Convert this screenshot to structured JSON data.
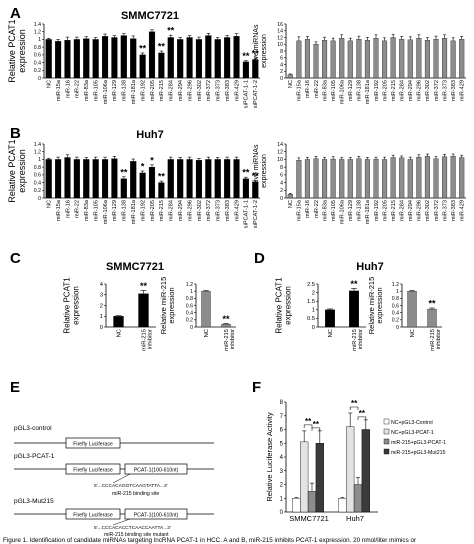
{
  "figure": {
    "panels": {
      "A": {
        "letter": "A",
        "title": "SMMC7721"
      },
      "B": {
        "letter": "B",
        "title": "Huh7"
      },
      "C": {
        "letter": "C",
        "title": "SMMC7721"
      },
      "D": {
        "letter": "D",
        "title": "Huh7"
      },
      "E": {
        "letter": "E"
      },
      "F": {
        "letter": "F"
      }
    },
    "caption": "Figure 1. Identification of candidate miRNAs targeting lncRNA PCAT-1 in HCC. A and B, miR-215 inhibits PCAT-1 expression. 20 nmol/liter mimics or"
  },
  "chart_data": [
    {
      "id": "A-left",
      "type": "bar",
      "panel": "A",
      "ylabel": "Relative PCAT1 expression",
      "ylim": [
        0,
        1.4
      ],
      "yticks": [
        "0",
        "0.2",
        "0.4",
        "0.6",
        "0.8",
        "1",
        "1.2",
        "1.4"
      ],
      "categories": [
        "NC",
        "miR-15a",
        "miR-16",
        "miR-22",
        "miR-83a",
        "miR-105",
        "miR-106a",
        "miR-129",
        "miR-138",
        "miR-181a",
        "miR-192",
        "miR-205",
        "miR-215",
        "miR-284",
        "miR-294",
        "miR-296",
        "miR-302",
        "miR-372",
        "miR-373",
        "miR-383",
        "miR-429",
        "siPCAT-1-1",
        "siPCAT-1-2"
      ],
      "values": [
        1.0,
        0.95,
        0.98,
        1.0,
        1.02,
        1.0,
        1.08,
        1.05,
        1.1,
        1.02,
        0.6,
        1.2,
        0.65,
        1.05,
        1.0,
        1.05,
        1.0,
        1.1,
        1.0,
        1.05,
        1.08,
        0.42,
        0.48
      ],
      "errors": [
        0.03,
        0.05,
        0.08,
        0.06,
        0.05,
        0.05,
        0.06,
        0.05,
        0.05,
        0.07,
        0.05,
        0.05,
        0.05,
        0.06,
        0.05,
        0.05,
        0.06,
        0.06,
        0.05,
        0.05,
        0.07,
        0.03,
        0.04
      ],
      "annotations": [
        {
          "index": 10,
          "text": "**"
        },
        {
          "index": 12,
          "text": "**"
        },
        {
          "index": 13,
          "text": "**"
        },
        {
          "index": 21,
          "text": "**"
        },
        {
          "index": 22,
          "text": "**"
        }
      ]
    },
    {
      "id": "A-right",
      "type": "bar",
      "panel": "A",
      "ylabel": "Relative miRNAs expression",
      "ylim": [
        0,
        16
      ],
      "yticks": [
        "0",
        "2",
        "4",
        "6",
        "8",
        "10",
        "12",
        "14",
        "16"
      ],
      "categories": [
        "NC",
        "miR-15a",
        "miR-16",
        "miR-22",
        "miR-83a",
        "miR-105",
        "miR-106a",
        "miR-129",
        "miR-138",
        "miR-181a",
        "miR-192",
        "miR-205",
        "miR-215",
        "miR-284",
        "miR-294",
        "miR-296",
        "miR-302",
        "miR-372",
        "miR-373",
        "miR-383",
        "miR-429"
      ],
      "values": [
        1.0,
        11.0,
        11.5,
        10.0,
        11.2,
        11.0,
        11.8,
        11.0,
        11.5,
        11.2,
        11.8,
        11.0,
        12.0,
        11.5,
        11.3,
        11.8,
        11.2,
        11.5,
        11.8,
        11.0,
        11.5
      ],
      "errors": [
        0.2,
        1.2,
        0.8,
        0.7,
        0.9,
        0.8,
        1.0,
        0.8,
        0.9,
        0.8,
        1.0,
        0.9,
        0.9,
        0.8,
        0.9,
        1.0,
        0.8,
        0.9,
        1.0,
        0.9,
        0.8
      ]
    },
    {
      "id": "B-left",
      "type": "bar",
      "panel": "B",
      "ylabel": "Relative PCAT1 expression",
      "ylim": [
        0,
        1.4
      ],
      "yticks": [
        "0",
        "0.2",
        "0.4",
        "0.6",
        "0.8",
        "1",
        "1.2",
        "1.4"
      ],
      "categories": [
        "NC",
        "miR-15a",
        "miR-16",
        "miR-22",
        "miR-83a",
        "miR-105",
        "miR-106a",
        "miR-129",
        "miR-138",
        "miR-181a",
        "miR-192",
        "miR-205",
        "miR-215",
        "miR-284",
        "miR-294",
        "miR-296",
        "miR-302",
        "miR-372",
        "miR-373",
        "miR-383",
        "miR-429",
        "siPCAT-1-1",
        "siPCAT-1-2"
      ],
      "values": [
        1.0,
        1.0,
        1.05,
        1.0,
        1.0,
        1.0,
        1.0,
        1.02,
        0.5,
        0.95,
        0.65,
        0.8,
        0.4,
        1.0,
        1.0,
        1.0,
        0.98,
        1.0,
        1.0,
        1.0,
        1.0,
        0.5,
        0.42
      ],
      "errors": [
        0.03,
        0.06,
        0.07,
        0.06,
        0.05,
        0.06,
        0.06,
        0.06,
        0.05,
        0.06,
        0.05,
        0.06,
        0.04,
        0.06,
        0.05,
        0.06,
        0.05,
        0.06,
        0.05,
        0.06,
        0.06,
        0.04,
        0.04
      ],
      "annotations": [
        {
          "index": 8,
          "text": "**"
        },
        {
          "index": 10,
          "text": "*"
        },
        {
          "index": 11,
          "text": "*"
        },
        {
          "index": 12,
          "text": "**"
        },
        {
          "index": 21,
          "text": "**"
        },
        {
          "index": 22,
          "text": "**"
        }
      ]
    },
    {
      "id": "B-right",
      "type": "bar",
      "panel": "B",
      "ylabel": "Relative miRNAs expression",
      "ylim": [
        0,
        14
      ],
      "yticks": [
        "0",
        "2",
        "4",
        "6",
        "8",
        "10",
        "12",
        "14"
      ],
      "categories": [
        "NC",
        "miR-15a",
        "miR-16",
        "miR-22",
        "miR-83a",
        "miR-105",
        "miR-106a",
        "miR-129",
        "miR-138",
        "miR-181a",
        "miR-192",
        "miR-205",
        "miR-215",
        "miR-284",
        "miR-294",
        "miR-296",
        "miR-302",
        "miR-372",
        "miR-373",
        "miR-383",
        "miR-429"
      ],
      "values": [
        1.0,
        9.8,
        10.0,
        10.2,
        10.0,
        10.1,
        10.0,
        10.0,
        10.2,
        10.0,
        10.1,
        10.0,
        10.5,
        10.4,
        10.0,
        10.6,
        10.8,
        10.2,
        10.7,
        10.8,
        10.5
      ],
      "errors": [
        0.2,
        0.6,
        0.5,
        0.6,
        0.5,
        0.6,
        0.5,
        0.5,
        0.6,
        0.5,
        0.5,
        0.6,
        0.6,
        0.5,
        0.6,
        0.6,
        0.6,
        0.5,
        0.6,
        0.6,
        0.6
      ]
    },
    {
      "id": "C-left",
      "type": "bar",
      "panel": "C",
      "ylabel": "Relative PCAT1 expression",
      "ylim": [
        0,
        4
      ],
      "yticks": [
        "0",
        "1",
        "2",
        "3",
        "4"
      ],
      "categories": [
        "NC",
        "miR-215 inhibitor"
      ],
      "values": [
        1.0,
        3.1
      ],
      "errors": [
        0.05,
        0.3
      ],
      "annotations": [
        {
          "index": 1,
          "text": "**"
        }
      ]
    },
    {
      "id": "C-right",
      "type": "bar",
      "panel": "C",
      "ylabel": "Relative miR-215 expression",
      "ylim": [
        0,
        1.2
      ],
      "yticks": [
        "0",
        "0.2",
        "0.4",
        "0.6",
        "0.8",
        "1",
        "1.2"
      ],
      "categories": [
        "NC",
        "miR-215 inhibitor"
      ],
      "values": [
        1.0,
        0.08
      ],
      "errors": [
        0.02,
        0.02
      ],
      "annotations": [
        {
          "index": 1,
          "text": "**"
        }
      ]
    },
    {
      "id": "D-left",
      "type": "bar",
      "panel": "D",
      "ylabel": "Relative PCAT1 expression",
      "ylim": [
        0,
        2.5
      ],
      "yticks": [
        "0",
        "0.5",
        "1",
        "1.5",
        "2",
        "2.5"
      ],
      "categories": [
        "NC",
        "miR-215 inhibitor"
      ],
      "values": [
        1.0,
        2.1
      ],
      "errors": [
        0.05,
        0.15
      ],
      "annotations": [
        {
          "index": 1,
          "text": "**"
        }
      ]
    },
    {
      "id": "D-right",
      "type": "bar",
      "panel": "D",
      "ylabel": "Relative miR-215 expression",
      "ylim": [
        0,
        1.2
      ],
      "yticks": [
        "0",
        "0.2",
        "0.4",
        "0.6",
        "0.8",
        "1",
        "1.2"
      ],
      "categories": [
        "NC",
        "miR-215 inhibitor"
      ],
      "values": [
        1.0,
        0.5
      ],
      "errors": [
        0.02,
        0.03
      ],
      "annotations": [
        {
          "index": 1,
          "text": "**"
        }
      ]
    },
    {
      "id": "F",
      "type": "bar",
      "panel": "F",
      "ylabel": "Relative Luciferase Activity",
      "ylim": [
        0,
        8
      ],
      "yticks": [
        "0",
        "1",
        "2",
        "3",
        "4",
        "5",
        "6",
        "7",
        "8"
      ],
      "categories": [
        "SMMC7721",
        "Huh7"
      ],
      "series": [
        {
          "name": "NC+pGL3-Control",
          "color": "#ffffff",
          "values": [
            1.0,
            1.0
          ],
          "errors": [
            0.05,
            0.05
          ]
        },
        {
          "name": "NC+pGL3-PCAT-1",
          "color": "#e3e3e3",
          "values": [
            5.1,
            6.2
          ],
          "errors": [
            0.8,
            1.0
          ]
        },
        {
          "name": "miR-215+pGL3-PCAT-1",
          "color": "#8c8c8c",
          "values": [
            1.5,
            2.0
          ],
          "errors": [
            0.6,
            0.5
          ]
        },
        {
          "name": "miR-215+pGL3-Mut215",
          "color": "#3a3a3a",
          "values": [
            5.0,
            6.0
          ],
          "errors": [
            0.9,
            0.7
          ]
        }
      ],
      "legend_position": "right",
      "annotations": [
        {
          "group": 0,
          "from": 1,
          "to": 2,
          "text": "**"
        },
        {
          "group": 0,
          "from": 2,
          "to": 3,
          "text": "**"
        },
        {
          "group": 1,
          "from": 1,
          "to": 2,
          "text": "**"
        },
        {
          "group": 1,
          "from": 2,
          "to": 3,
          "text": "**"
        }
      ]
    }
  ],
  "diagram_E": {
    "constructs": [
      {
        "label": "pGL3-control",
        "gene": "Firefly Luciferase"
      },
      {
        "label": "pGL3-PCAT-1",
        "gene": "Firefly Luciferase",
        "insert": "PCAT-1(100-610nt)",
        "seq": "5'...CCCACAGGTCAAGTATTA...3'",
        "site": "miR-215 binding site"
      },
      {
        "label": "pGL3-Mut215",
        "gene": "Firefly Luciferase",
        "insert": "PCAT-1(100-610nt)",
        "seq": "5'...CCCACACCTCAACCAATTA...3'",
        "site": "miR-215 binding site mutant"
      }
    ]
  }
}
